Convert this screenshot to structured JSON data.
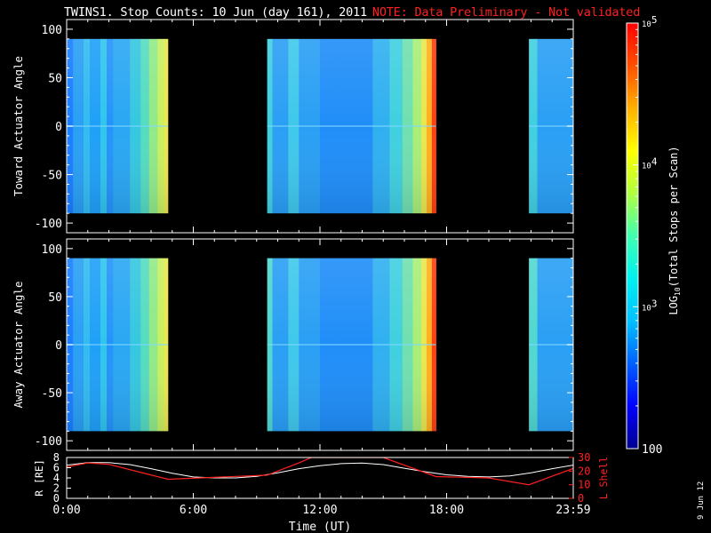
{
  "title": {
    "main": "TWINS1. Stop Counts: 10 Jun (day 161), 2011",
    "note": "NOTE: Data Preliminary - Not validated"
  },
  "side_date": "9 Jun 12",
  "colors": {
    "background": "#000000",
    "note_red": "#ff2020",
    "r_line": "#ffffff",
    "lshell_line": "#ff2020"
  },
  "chart_data": [
    {
      "type": "heatmap",
      "panel": "toward",
      "ylabel": "Toward Actuator Angle",
      "ylim": [
        -110,
        110
      ],
      "yticks": [
        "100",
        "50",
        "0",
        "-50",
        "-100"
      ],
      "xlim_hours": [
        0,
        24
      ],
      "data_ranges_hours": [
        [
          0,
          4.8
        ],
        [
          9.5,
          17.5
        ],
        [
          21.9,
          24
        ]
      ],
      "angle_range": [
        -90,
        90
      ],
      "bands": [
        {
          "range": [
            0.0,
            0.3
          ],
          "color": "#1a7fff"
        },
        {
          "range": [
            0.3,
            0.8
          ],
          "color": "#2a9ff4"
        },
        {
          "range": [
            0.8,
            1.1
          ],
          "color": "#33bbf0"
        },
        {
          "range": [
            1.1,
            1.6
          ],
          "color": "#20a0f8"
        },
        {
          "range": [
            1.6,
            1.9
          ],
          "color": "#30c5ee"
        },
        {
          "range": [
            1.9,
            2.2
          ],
          "color": "#2494fa"
        },
        {
          "range": [
            2.2,
            3.0
          ],
          "color": "#2aa7f3"
        },
        {
          "range": [
            3.0,
            3.5
          ],
          "color": "#36c7e0"
        },
        {
          "range": [
            3.5,
            3.9
          ],
          "color": "#55dcc0"
        },
        {
          "range": [
            3.9,
            4.3
          ],
          "color": "#90ea8a"
        },
        {
          "range": [
            4.3,
            4.6
          ],
          "color": "#c8f060"
        },
        {
          "range": [
            4.6,
            4.8
          ],
          "color": "#e8e850"
        },
        {
          "range": [
            9.5,
            9.75
          ],
          "color": "#40d0e0"
        },
        {
          "range": [
            9.75,
            10.5
          ],
          "color": "#2a9ff4"
        },
        {
          "range": [
            10.5,
            11.0
          ],
          "color": "#40c8ea"
        },
        {
          "range": [
            11.0,
            12.0
          ],
          "color": "#2a9ff4"
        },
        {
          "range": [
            12.0,
            14.5
          ],
          "color": "#208ef8"
        },
        {
          "range": [
            14.5,
            15.3
          ],
          "color": "#30b0f0"
        },
        {
          "range": [
            15.3,
            15.9
          ],
          "color": "#40d0e0"
        },
        {
          "range": [
            15.9,
            16.4
          ],
          "color": "#70e0b0"
        },
        {
          "range": [
            16.4,
            16.8
          ],
          "color": "#a8ee78"
        },
        {
          "range": [
            16.8,
            17.05
          ],
          "color": "#e8e850"
        },
        {
          "range": [
            17.05,
            17.3
          ],
          "color": "#ffb020"
        },
        {
          "range": [
            17.3,
            17.5
          ],
          "color": "#ff4010"
        },
        {
          "range": [
            21.9,
            22.3
          ],
          "color": "#40d0e0"
        },
        {
          "range": [
            22.3,
            24.0
          ],
          "color": "#2a9ff4"
        }
      ]
    },
    {
      "type": "heatmap",
      "panel": "away",
      "ylabel": "Away Actuator Angle",
      "ylim": [
        -110,
        110
      ],
      "yticks": [
        "100",
        "50",
        "0",
        "-50",
        "-100"
      ],
      "xlim_hours": [
        0,
        24
      ],
      "data_ranges_hours": [
        [
          0,
          4.8
        ],
        [
          9.5,
          17.5
        ],
        [
          21.9,
          24
        ]
      ],
      "angle_range": [
        -90,
        90
      ],
      "bands": [
        {
          "range": [
            0.0,
            0.3
          ],
          "color": "#1a7fff"
        },
        {
          "range": [
            0.3,
            0.8
          ],
          "color": "#2a9ff4"
        },
        {
          "range": [
            0.8,
            1.1
          ],
          "color": "#33bbf0"
        },
        {
          "range": [
            1.1,
            1.6
          ],
          "color": "#20a0f8"
        },
        {
          "range": [
            1.6,
            1.9
          ],
          "color": "#30c5ee"
        },
        {
          "range": [
            1.9,
            2.2
          ],
          "color": "#2494fa"
        },
        {
          "range": [
            2.2,
            3.0
          ],
          "color": "#2aa7f3"
        },
        {
          "range": [
            3.0,
            3.5
          ],
          "color": "#36c7e0"
        },
        {
          "range": [
            3.5,
            3.9
          ],
          "color": "#55dcc0"
        },
        {
          "range": [
            3.9,
            4.3
          ],
          "color": "#90ea8a"
        },
        {
          "range": [
            4.3,
            4.6
          ],
          "color": "#c8f060"
        },
        {
          "range": [
            4.6,
            4.8
          ],
          "color": "#e8e850"
        },
        {
          "range": [
            9.5,
            9.75
          ],
          "color": "#50d8d0"
        },
        {
          "range": [
            9.75,
            10.5
          ],
          "color": "#2a9ff4"
        },
        {
          "range": [
            10.5,
            11.0
          ],
          "color": "#40c8ea"
        },
        {
          "range": [
            11.0,
            12.0
          ],
          "color": "#2a9ff4"
        },
        {
          "range": [
            12.0,
            14.5
          ],
          "color": "#208ef8"
        },
        {
          "range": [
            14.5,
            15.3
          ],
          "color": "#30b0f0"
        },
        {
          "range": [
            15.3,
            15.9
          ],
          "color": "#40d0e0"
        },
        {
          "range": [
            15.9,
            16.4
          ],
          "color": "#70e0b0"
        },
        {
          "range": [
            16.4,
            16.8
          ],
          "color": "#a8ee78"
        },
        {
          "range": [
            16.8,
            17.05
          ],
          "color": "#e8e850"
        },
        {
          "range": [
            17.05,
            17.3
          ],
          "color": "#ffb020"
        },
        {
          "range": [
            17.3,
            17.5
          ],
          "color": "#ff4010"
        },
        {
          "range": [
            21.9,
            22.3
          ],
          "color": "#50d8d0"
        },
        {
          "range": [
            22.3,
            24.0
          ],
          "color": "#2a9ff4"
        }
      ]
    },
    {
      "type": "line",
      "panel": "orbit",
      "ylabel": "R [RE]",
      "ylabel_right": "L Shell",
      "xlabel": "Time (UT)",
      "xticks": [
        "0:00",
        "6:00",
        "12:00",
        "18:00",
        "23:59"
      ],
      "xtick_hours": [
        0,
        6,
        12,
        18,
        24
      ],
      "ylim": [
        0,
        8
      ],
      "yticks": [
        "8",
        "6",
        "4",
        "2",
        "0"
      ],
      "ylim_right": [
        0,
        30
      ],
      "yticks_right": [
        "30",
        "20",
        "10",
        "0"
      ],
      "series": [
        {
          "name": "R",
          "x": [
            0,
            1,
            2,
            3,
            4,
            5,
            6,
            7,
            8,
            9,
            10,
            11,
            12,
            13,
            14,
            15,
            16,
            17,
            18,
            19,
            20,
            21,
            22,
            23,
            24
          ],
          "y": [
            6.5,
            7.0,
            7.0,
            6.6,
            5.8,
            4.9,
            4.2,
            4.0,
            4.0,
            4.3,
            5.0,
            5.8,
            6.4,
            6.8,
            6.9,
            6.6,
            5.9,
            5.2,
            4.6,
            4.3,
            4.2,
            4.4,
            5.0,
            5.8,
            6.5
          ]
        },
        {
          "name": "L Shell",
          "x": [
            0,
            1,
            2,
            4.8,
            9.5,
            11.0,
            11.6,
            15.0,
            15.7,
            17.5,
            20.0,
            21.9,
            24
          ],
          "y": [
            23,
            26,
            25,
            14,
            17,
            26,
            30,
            30,
            26,
            16,
            15,
            10,
            22
          ]
        }
      ]
    },
    {
      "type": "heatmap",
      "panel": "colorbar",
      "label": "LOG10(Total Stops per Scan)",
      "range": [
        100,
        100000
      ],
      "ticks": [
        "10^5",
        "10^4",
        "10^3",
        "100"
      ],
      "colormap": [
        "#000090",
        "#0000ff",
        "#0060ff",
        "#00c0ff",
        "#00f0f0",
        "#40ffb0",
        "#b0ff40",
        "#ffff00",
        "#ffb000",
        "#ff5000",
        "#ff0000"
      ]
    }
  ]
}
